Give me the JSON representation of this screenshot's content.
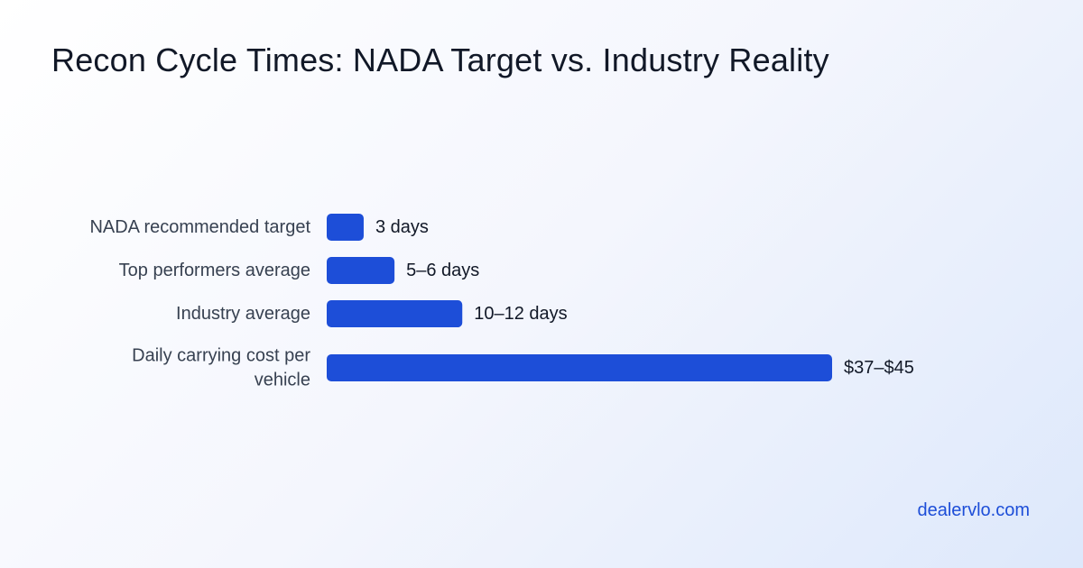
{
  "header": {
    "title": "Recon Cycle Times: NADA Target vs. Industry Reality"
  },
  "footer": {
    "site": "dealervlo.com"
  },
  "colors": {
    "bar": "#1d4ed8",
    "accent_text": "#1d4ed8"
  },
  "chart_data": {
    "type": "bar",
    "orientation": "horizontal",
    "title": "Recon Cycle Times: NADA Target vs. Industry Reality",
    "grid": false,
    "categories": [
      "NADA recommended target",
      "Top performers average",
      "Industry average",
      "Daily carrying cost per vehicle"
    ],
    "values": [
      3,
      5.5,
      11,
      41
    ],
    "data_labels": [
      "3 days",
      "5–6 days",
      "10–12 days",
      "$37–$45"
    ],
    "xlim": [
      0,
      41
    ]
  }
}
